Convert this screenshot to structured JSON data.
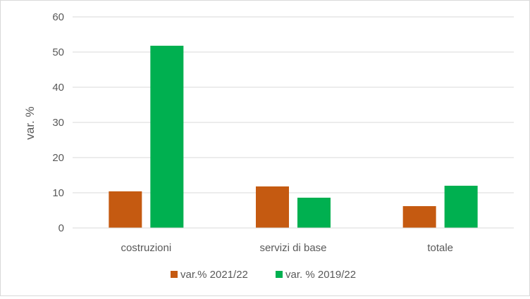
{
  "chart_data": {
    "type": "bar",
    "title": "",
    "xlabel": "",
    "ylabel": "var. %",
    "ylim": [
      0,
      60
    ],
    "yticks": [
      0,
      10,
      20,
      30,
      40,
      50,
      60
    ],
    "grid": true,
    "legend_position": "bottom",
    "categories": [
      "costruzioni",
      "servizi di base",
      "totale"
    ],
    "series": [
      {
        "name": "var.% 2021/22",
        "color": "#c55a11",
        "values": [
          10.4,
          11.8,
          6.2
        ]
      },
      {
        "name": "var. % 2019/22",
        "color": "#00b050",
        "values": [
          51.8,
          8.6,
          12.0
        ]
      }
    ]
  }
}
